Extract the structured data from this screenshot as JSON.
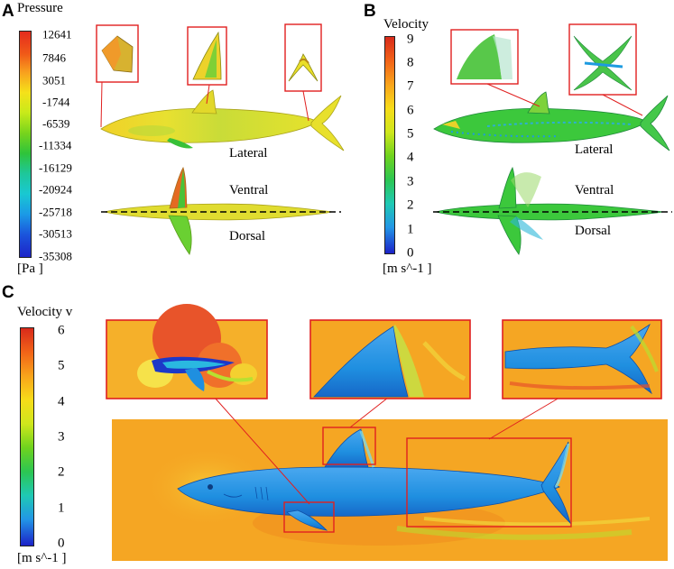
{
  "panels": {
    "a": {
      "letter": "A",
      "colorbar_title": "Pressure",
      "ticks": [
        "12641",
        "7846",
        "3051",
        "-1744",
        "-6539",
        "-11334",
        "-16129",
        "-20924",
        "-25718",
        "-30513",
        "-35308"
      ],
      "unit": "[Pa ]",
      "labels": {
        "lateral": "Lateral",
        "ventral": "Ventral",
        "dorsal": "Dorsal"
      }
    },
    "b": {
      "letter": "B",
      "colorbar_title": "Velocity",
      "ticks": [
        "9",
        "8",
        "7",
        "6",
        "5",
        "4",
        "3",
        "2",
        "1",
        "0"
      ],
      "unit": "[m s^-1 ]",
      "labels": {
        "lateral": "Lateral",
        "ventral": "Ventral",
        "dorsal": "Dorsal"
      }
    },
    "c": {
      "letter": "C",
      "colorbar_title": "Velocity v",
      "ticks": [
        "6",
        "5",
        "4",
        "3",
        "2",
        "1",
        "0"
      ],
      "unit": "[m s^-1 ]"
    }
  },
  "colors": {
    "highlight_box": "#e02020",
    "flow_field_background": "#f5a623",
    "shark_pressure_surface": "#e8e030",
    "shark_velocity_surface": "#3cc83c",
    "shark_body_c": "#1f8fe0"
  }
}
